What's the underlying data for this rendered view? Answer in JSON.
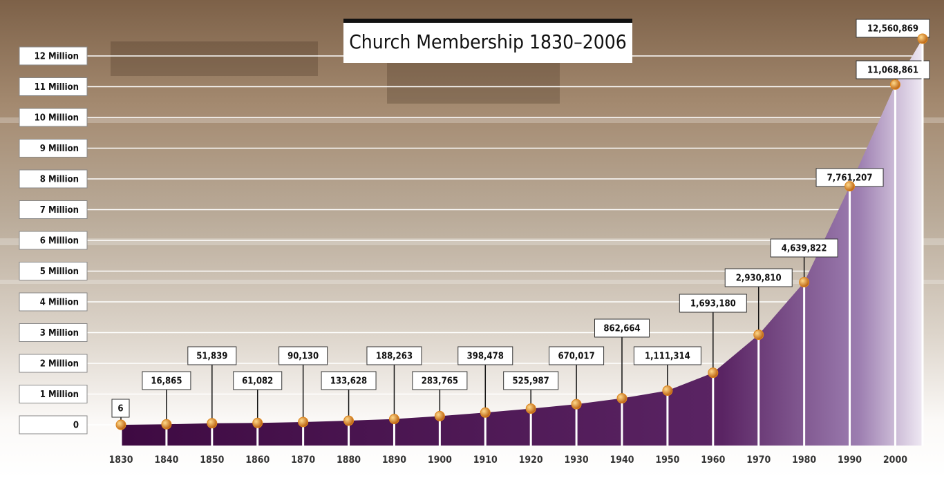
{
  "chart_data": {
    "type": "area",
    "title": "Church Membership 1830–2006",
    "x": [
      1830,
      1840,
      1850,
      1860,
      1870,
      1880,
      1890,
      1900,
      1910,
      1920,
      1930,
      1940,
      1950,
      1960,
      1970,
      1980,
      1990,
      2000,
      2006
    ],
    "values": [
      6,
      16865,
      51839,
      61082,
      90130,
      133628,
      188263,
      283765,
      398478,
      525987,
      670017,
      862664,
      1111314,
      1693180,
      2930810,
      4639822,
      7761207,
      11068861,
      12560869
    ],
    "value_labels": [
      "6",
      "16,865",
      "51,839",
      "61,082",
      "90,130",
      "133,628",
      "188,263",
      "283,765",
      "398,478",
      "525,987",
      "670,017",
      "862,664",
      "1,111,314",
      "1,693,180",
      "2,930,810",
      "4,639,822",
      "7,761,207",
      "11,068,861",
      "12,560,869"
    ],
    "color": "#4a0f4f",
    "point_color": "#e0871c",
    "xlim": [
      1830,
      2006
    ],
    "xticks": [
      1830,
      1840,
      1850,
      1860,
      1870,
      1880,
      1890,
      1900,
      1910,
      1920,
      1930,
      1940,
      1950,
      1960,
      1970,
      1980,
      1990,
      2000
    ],
    "ylim": [
      0,
      12000000
    ],
    "yticks": [
      0,
      {
        "value": 1000000,
        "label": "1 Million"
      },
      {
        "value": 2000000,
        "label": "2 Million"
      },
      {
        "value": 3000000,
        "label": "3 Million"
      },
      {
        "value": 4000000,
        "label": "4 Million"
      },
      {
        "value": 5000000,
        "label": "5 Million"
      },
      {
        "value": 6000000,
        "label": "6 Million"
      },
      {
        "value": 7000000,
        "label": "7 Million"
      },
      {
        "value": 8000000,
        "label": "8 Million"
      },
      {
        "value": 9000000,
        "label": "9 Million"
      },
      {
        "value": 10000000,
        "label": "10 Million"
      },
      {
        "value": 11000000,
        "label": "11 Million"
      },
      {
        "value": 12000000,
        "label": "12 Million"
      }
    ],
    "grid": true
  }
}
